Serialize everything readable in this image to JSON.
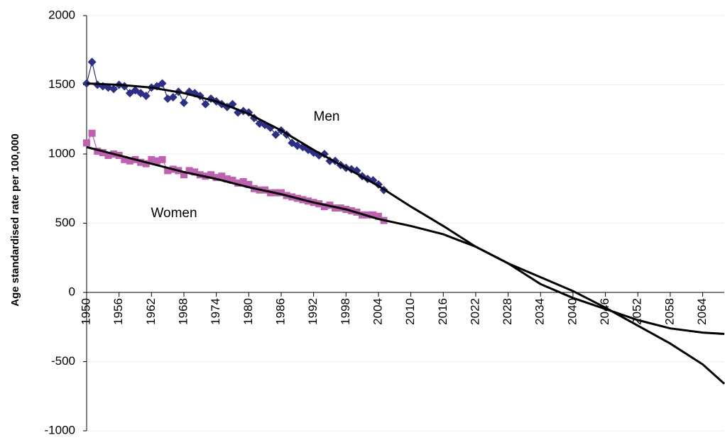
{
  "chart_data": {
    "type": "line",
    "ylabel": "Age standardised rate per 100,000",
    "annotations": [
      "Men",
      "Women"
    ],
    "xlim": [
      1950,
      2068
    ],
    "ylim": [
      -1000,
      2000
    ],
    "xticks": [
      1950,
      1956,
      1962,
      1968,
      1974,
      1980,
      1986,
      1992,
      1998,
      2004,
      2010,
      2016,
      2022,
      2028,
      2034,
      2040,
      2046,
      2052,
      2058,
      2064
    ],
    "yticks": [
      -1000,
      -500,
      0,
      500,
      1000,
      1500,
      2000
    ],
    "grid": true,
    "series": [
      {
        "color": "#2b2f8a",
        "marker": "diamond",
        "x": [
          1950,
          1951,
          1952,
          1953,
          1954,
          1955,
          1956,
          1957,
          1958,
          1959,
          1960,
          1961,
          1962,
          1963,
          1964,
          1965,
          1966,
          1967,
          1968,
          1969,
          1970,
          1971,
          1972,
          1973,
          1974,
          1975,
          1976,
          1977,
          1978,
          1979,
          1980,
          1981,
          1982,
          1983,
          1984,
          1985,
          1986,
          1987,
          1988,
          1989,
          1990,
          1991,
          1992,
          1993,
          1994,
          1995,
          1996,
          1997,
          1998,
          1999,
          2000,
          2001,
          2002,
          2003,
          2004,
          2005
        ],
        "values": [
          1510,
          1665,
          1500,
          1490,
          1480,
          1470,
          1500,
          1490,
          1440,
          1460,
          1440,
          1420,
          1480,
          1490,
          1510,
          1400,
          1410,
          1450,
          1370,
          1450,
          1440,
          1420,
          1360,
          1400,
          1380,
          1360,
          1340,
          1360,
          1300,
          1310,
          1300,
          1260,
          1220,
          1210,
          1190,
          1140,
          1170,
          1140,
          1080,
          1060,
          1050,
          1030,
          1010,
          990,
          1000,
          950,
          950,
          920,
          900,
          890,
          880,
          840,
          820,
          810,
          780,
          740
        ]
      },
      {
        "color": "#c060b0",
        "marker": "square",
        "x": [
          1950,
          1951,
          1952,
          1953,
          1954,
          1955,
          1956,
          1957,
          1958,
          1959,
          1960,
          1961,
          1962,
          1963,
          1964,
          1965,
          1966,
          1967,
          1968,
          1969,
          1970,
          1971,
          1972,
          1973,
          1974,
          1975,
          1976,
          1977,
          1978,
          1979,
          1980,
          1981,
          1982,
          1983,
          1984,
          1985,
          1986,
          1987,
          1988,
          1989,
          1990,
          1991,
          1992,
          1993,
          1994,
          1995,
          1996,
          1997,
          1998,
          1999,
          2000,
          2001,
          2002,
          2003,
          2004,
          2005
        ],
        "values": [
          1080,
          1150,
          1020,
          1010,
          990,
          1000,
          990,
          960,
          950,
          960,
          940,
          930,
          960,
          950,
          960,
          880,
          890,
          880,
          850,
          880,
          870,
          850,
          840,
          850,
          830,
          840,
          820,
          810,
          790,
          800,
          780,
          750,
          740,
          740,
          720,
          720,
          720,
          700,
          690,
          680,
          670,
          660,
          650,
          640,
          620,
          630,
          610,
          610,
          600,
          590,
          580,
          560,
          560,
          560,
          550,
          520
        ]
      },
      {
        "color": "#000000",
        "x": [
          1950,
          1956,
          1962,
          1968,
          1974,
          1980,
          1986,
          1992,
          1998,
          2004,
          2010,
          2016,
          2022,
          2028,
          2034,
          2040,
          2046,
          2052,
          2058,
          2064,
          2068
        ],
        "values": [
          1510,
          1500,
          1480,
          1440,
          1380,
          1290,
          1170,
          1030,
          900,
          770,
          620,
          480,
          330,
          210,
          60,
          -40,
          -120,
          -200,
          -260,
          -290,
          -300
        ]
      },
      {
        "color": "#000000",
        "x": [
          1950,
          1956,
          1962,
          1968,
          1974,
          1980,
          1986,
          1992,
          1998,
          2004,
          2010,
          2016,
          2022,
          2028,
          2034,
          2040,
          2046,
          2052,
          2058,
          2064,
          2068
        ],
        "values": [
          1050,
          990,
          930,
          870,
          820,
          760,
          710,
          650,
          600,
          530,
          480,
          420,
          330,
          210,
          110,
          10,
          -110,
          -240,
          -370,
          -520,
          -660
        ]
      }
    ]
  }
}
